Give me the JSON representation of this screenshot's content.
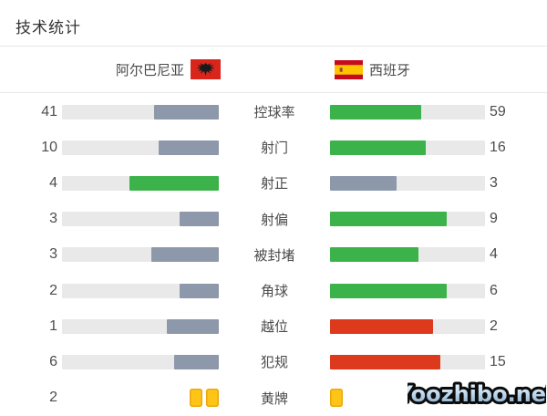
{
  "title": "技术统计",
  "teams": {
    "home": {
      "name": "阿尔巴尼亚",
      "flag": "albania-flag"
    },
    "away": {
      "name": "西班牙",
      "flag": "spain-flag"
    }
  },
  "colors": {
    "green": "#3bb34a",
    "gray": "#8d99ab",
    "red": "#dd3a1d",
    "track": "#e9e9e9",
    "card_fill": "#ffc516",
    "card_border": "#eaa70c"
  },
  "rows": [
    {
      "label": "控球率",
      "home": {
        "value": "41",
        "fill": "gray"
      },
      "away": {
        "value": "59",
        "fill": "green"
      }
    },
    {
      "label": "射门",
      "home": {
        "value": "10",
        "fill": "gray"
      },
      "away": {
        "value": "16",
        "fill": "green"
      }
    },
    {
      "label": "射正",
      "home": {
        "value": "4",
        "fill": "green"
      },
      "away": {
        "value": "3",
        "fill": "gray"
      }
    },
    {
      "label": "射偏",
      "home": {
        "value": "3",
        "fill": "gray"
      },
      "away": {
        "value": "9",
        "fill": "green"
      }
    },
    {
      "label": "被封堵",
      "home": {
        "value": "3",
        "fill": "gray"
      },
      "away": {
        "value": "4",
        "fill": "green"
      }
    },
    {
      "label": "角球",
      "home": {
        "value": "2",
        "fill": "gray"
      },
      "away": {
        "value": "6",
        "fill": "green"
      }
    },
    {
      "label": "越位",
      "home": {
        "value": "1",
        "fill": "gray"
      },
      "away": {
        "value": "2",
        "fill": "red"
      }
    },
    {
      "label": "犯规",
      "home": {
        "value": "6",
        "fill": "gray"
      },
      "away": {
        "value": "15",
        "fill": "red"
      }
    },
    {
      "label": "黄牌",
      "type": "cards",
      "home": {
        "value": "2",
        "cards": 2
      },
      "away": {
        "value": "",
        "cards": 1,
        "value_hidden_by_watermark": true
      }
    }
  ],
  "watermark": "Yoozhibo.net",
  "chart_data": {
    "type": "bar",
    "title": "技术统计",
    "orientation": "horizontal-mirrored",
    "categories": [
      "控球率",
      "射门",
      "射正",
      "射偏",
      "被封堵",
      "角球",
      "越位",
      "犯规",
      "黄牌"
    ],
    "series": [
      {
        "name": "阿尔巴尼亚",
        "values": [
          41,
          10,
          4,
          3,
          3,
          2,
          1,
          6,
          2
        ]
      },
      {
        "name": "西班牙",
        "values": [
          59,
          16,
          3,
          9,
          4,
          6,
          2,
          15,
          1
        ]
      }
    ],
    "notes": "bar length = value/(home+away); leader bar green (red for negative stats 越位/犯规), trailer gray; 黄牌 row shown as yellow card icons, away count text hidden by watermark"
  }
}
